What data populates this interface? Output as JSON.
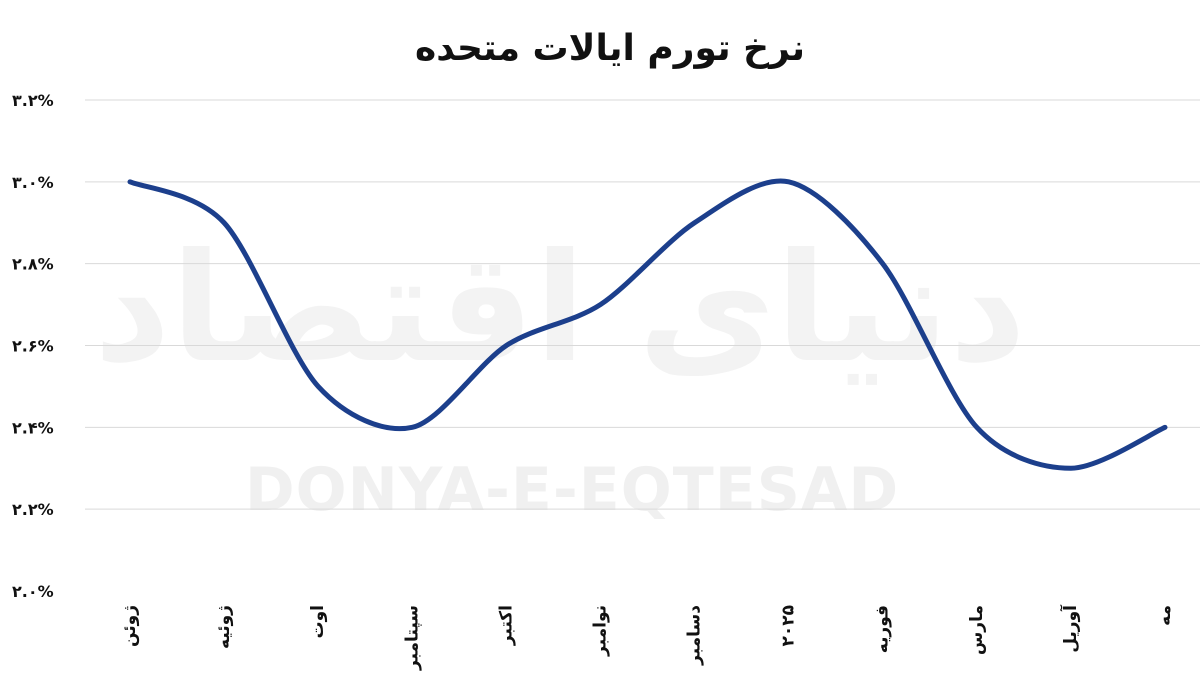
{
  "watermark": {
    "latin": "DONYA-E-EQTESAD",
    "script": "دنیای اقتصاد"
  },
  "chart_data": {
    "type": "line",
    "title": "نرخ تورم ایالات متحده",
    "xlabel": "",
    "ylabel": "",
    "categories": [
      "ژوئن",
      "ژوئیه",
      "اوت",
      "سپتامبر",
      "اکتبر",
      "نوامبر",
      "دسامبر",
      "۲۰۲۵",
      "فوریه",
      "مارس",
      "آوریل",
      "مه"
    ],
    "series": [
      {
        "values": [
          3.0,
          2.9,
          2.5,
          2.4,
          2.6,
          2.7,
          2.9,
          3.0,
          2.8,
          2.4,
          2.3,
          2.4
        ]
      }
    ],
    "ylim": [
      2.0,
      3.2
    ],
    "yticks": [
      2.0,
      2.2,
      2.4,
      2.6,
      2.8,
      3.0,
      3.2
    ],
    "ytick_labels": [
      "۲.۰%",
      "۲.۲%",
      "۲.۴%",
      "۲.۶%",
      "۲.۸%",
      "۳.۰%",
      "۳.۲%"
    ],
    "grid": true,
    "legend": "none",
    "line_color": "#1c3f8c",
    "grid_color": "#d9d9d9"
  }
}
